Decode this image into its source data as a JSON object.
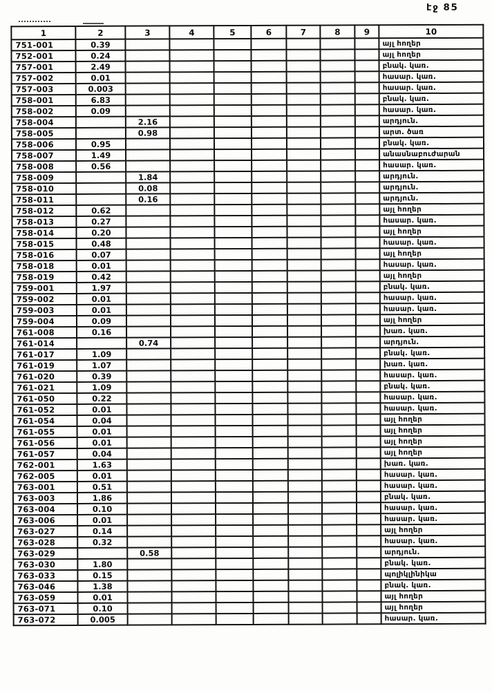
{
  "page_label": "էջ 85",
  "table": {
    "headers": [
      "1",
      "2",
      "3",
      "4",
      "5",
      "6",
      "7",
      "8",
      "9",
      "10"
    ],
    "rows": [
      {
        "code": "751-001",
        "v2": "0.39",
        "v3": "",
        "cat": "այլ հողեր"
      },
      {
        "code": "752-001",
        "v2": "0.24",
        "v3": "",
        "cat": "այլ հողեր"
      },
      {
        "code": "757-001",
        "v2": "2.49",
        "v3": "",
        "cat": "բնակ. կառ."
      },
      {
        "code": "757-002",
        "v2": "0.01",
        "v3": "",
        "cat": "հասար. կառ."
      },
      {
        "code": "757-003",
        "v2": "0.003",
        "v3": "",
        "cat": "հասար. կառ."
      },
      {
        "code": "758-001",
        "v2": "6.83",
        "v3": "",
        "cat": "բնակ. կառ."
      },
      {
        "code": "758-002",
        "v2": "0.09",
        "v3": "",
        "cat": "հասար. կառ."
      },
      {
        "code": "758-004",
        "v2": "",
        "v3": "2.16",
        "cat": "արդյուն."
      },
      {
        "code": "758-005",
        "v2": "",
        "v3": "0.98",
        "cat": "արտ. ծառ"
      },
      {
        "code": "758-006",
        "v2": "0.95",
        "v3": "",
        "cat": "բնակ. կառ."
      },
      {
        "code": "758-007",
        "v2": "1.49",
        "v3": "",
        "cat": "անասնաբուժարան"
      },
      {
        "code": "758-008",
        "v2": "0.56",
        "v3": "",
        "cat": "հասար. կառ."
      },
      {
        "code": "758-009",
        "v2": "",
        "v3": "1.84",
        "cat": "արդյուն."
      },
      {
        "code": "758-010",
        "v2": "",
        "v3": "0.08",
        "cat": "արդյուն."
      },
      {
        "code": "758-011",
        "v2": "",
        "v3": "0.16",
        "cat": "արդյուն."
      },
      {
        "code": "758-012",
        "v2": "0.62",
        "v3": "",
        "cat": "այլ հողեր"
      },
      {
        "code": "758-013",
        "v2": "0.27",
        "v3": "",
        "cat": "հասար. կառ."
      },
      {
        "code": "758-014",
        "v2": "0.20",
        "v3": "",
        "cat": "այլ հողեր"
      },
      {
        "code": "758-015",
        "v2": "0.48",
        "v3": "",
        "cat": "հասար. կառ."
      },
      {
        "code": "758-016",
        "v2": "0.07",
        "v3": "",
        "cat": "այլ հողեր"
      },
      {
        "code": "758-018",
        "v2": "0.01",
        "v3": "",
        "cat": "հասար. կառ."
      },
      {
        "code": "758-019",
        "v2": "0.42",
        "v3": "",
        "cat": "այլ հողեր"
      },
      {
        "code": "759-001",
        "v2": "1.97",
        "v3": "",
        "cat": "բնակ. կառ."
      },
      {
        "code": "759-002",
        "v2": "0.01",
        "v3": "",
        "cat": "հասար. կառ."
      },
      {
        "code": "759-003",
        "v2": "0.01",
        "v3": "",
        "cat": "հասար. կառ."
      },
      {
        "code": "759-004",
        "v2": "0.09",
        "v3": "",
        "cat": "այլ հողեր"
      },
      {
        "code": "761-008",
        "v2": "0.16",
        "v3": "",
        "cat": "խառ. կառ."
      },
      {
        "code": "761-014",
        "v2": "",
        "v3": "0.74",
        "cat": "արդյուն."
      },
      {
        "code": "761-017",
        "v2": "1.09",
        "v3": "",
        "cat": "բնակ. կառ."
      },
      {
        "code": "761-019",
        "v2": "1.07",
        "v3": "",
        "cat": "խառ. կառ."
      },
      {
        "code": "761-020",
        "v2": "0.39",
        "v3": "",
        "cat": "հասար. կառ."
      },
      {
        "code": "761-021",
        "v2": "1.09",
        "v3": "",
        "cat": "բնակ. կառ."
      },
      {
        "code": "761-050",
        "v2": "0.22",
        "v3": "",
        "cat": "հասար. կառ."
      },
      {
        "code": "761-052",
        "v2": "0.01",
        "v3": "",
        "cat": "հասար. կառ."
      },
      {
        "code": "761-054",
        "v2": "0.04",
        "v3": "",
        "cat": "այլ հողեր"
      },
      {
        "code": "761-055",
        "v2": "0.01",
        "v3": "",
        "cat": "այլ հողեր"
      },
      {
        "code": "761-056",
        "v2": "0.01",
        "v3": "",
        "cat": "այլ հողեր"
      },
      {
        "code": "761-057",
        "v2": "0.04",
        "v3": "",
        "cat": "այլ հողեր"
      },
      {
        "code": "762-001",
        "v2": "1.63",
        "v3": "",
        "cat": "խառ. կառ."
      },
      {
        "code": "762-005",
        "v2": "0.01",
        "v3": "",
        "cat": "հասար. կառ."
      },
      {
        "code": "763-001",
        "v2": "0.51",
        "v3": "",
        "cat": "հասար. կառ."
      },
      {
        "code": "763-003",
        "v2": "1.86",
        "v3": "",
        "cat": "բնակ. կառ."
      },
      {
        "code": "763-004",
        "v2": "0.10",
        "v3": "",
        "cat": "հասար. կառ."
      },
      {
        "code": "763-006",
        "v2": "0.01",
        "v3": "",
        "cat": "հասար. կառ."
      },
      {
        "code": "763-027",
        "v2": "0.14",
        "v3": "",
        "cat": "այլ հողեր"
      },
      {
        "code": "763-028",
        "v2": "0.32",
        "v3": "",
        "cat": "հասար. կառ."
      },
      {
        "code": "763-029",
        "v2": "",
        "v3": "0.58",
        "cat": "արդյուն."
      },
      {
        "code": "763-030",
        "v2": "1.80",
        "v3": "",
        "cat": "բնակ. կառ."
      },
      {
        "code": "763-033",
        "v2": "0.15",
        "v3": "",
        "cat": "պոլիկլինիկա"
      },
      {
        "code": "763-046",
        "v2": "1.38",
        "v3": "",
        "cat": "բնակ. կառ."
      },
      {
        "code": "763-059",
        "v2": "0.01",
        "v3": "",
        "cat": "այլ հողեր"
      },
      {
        "code": "763-071",
        "v2": "0.10",
        "v3": "",
        "cat": "այլ հողեր"
      },
      {
        "code": "763-072",
        "v2": "0.005",
        "v3": "",
        "cat": "հասար. կառ."
      }
    ]
  }
}
